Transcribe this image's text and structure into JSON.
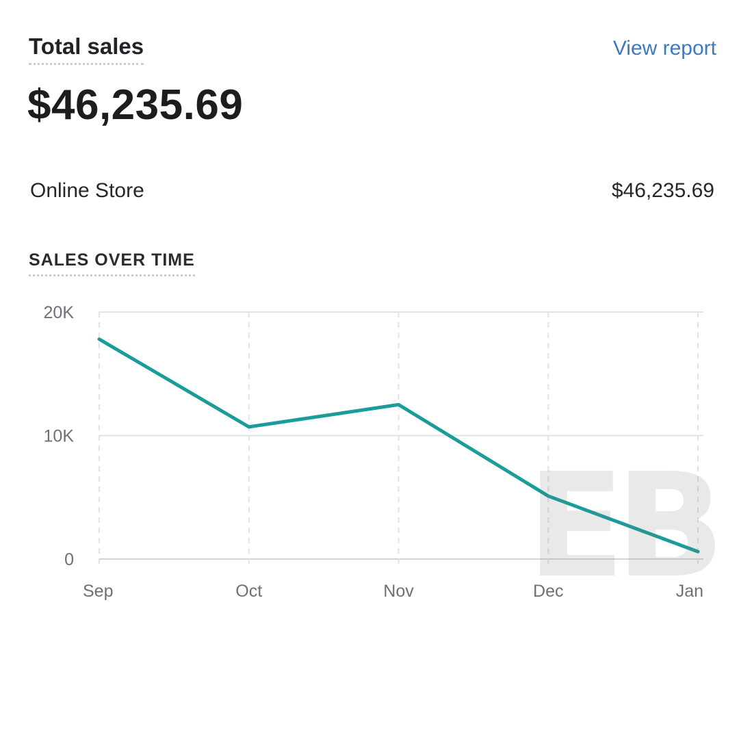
{
  "header": {
    "title": "Total sales",
    "view_report_label": "View report"
  },
  "summary": {
    "total_value": "$46,235.69"
  },
  "channels": [
    {
      "name": "Online Store",
      "value": "$46,235.69"
    }
  ],
  "section": {
    "label": "SALES OVER TIME"
  },
  "colors": {
    "accent": "#1a9c9a",
    "link": "#3b79c4",
    "grid": "#e1e3e5"
  },
  "watermark": {
    "text": "EB"
  },
  "chart_data": {
    "type": "line",
    "categories": [
      "Sep",
      "Oct",
      "Nov",
      "Dec",
      "Jan"
    ],
    "series": [
      {
        "values": [
          17800,
          10700,
          12500,
          5100,
          600
        ]
      }
    ],
    "ylim": [
      0,
      20000
    ],
    "yticks": [
      0,
      10000,
      20000
    ],
    "ytick_labels": [
      "0",
      "10K",
      "20K"
    ],
    "grid": true
  }
}
